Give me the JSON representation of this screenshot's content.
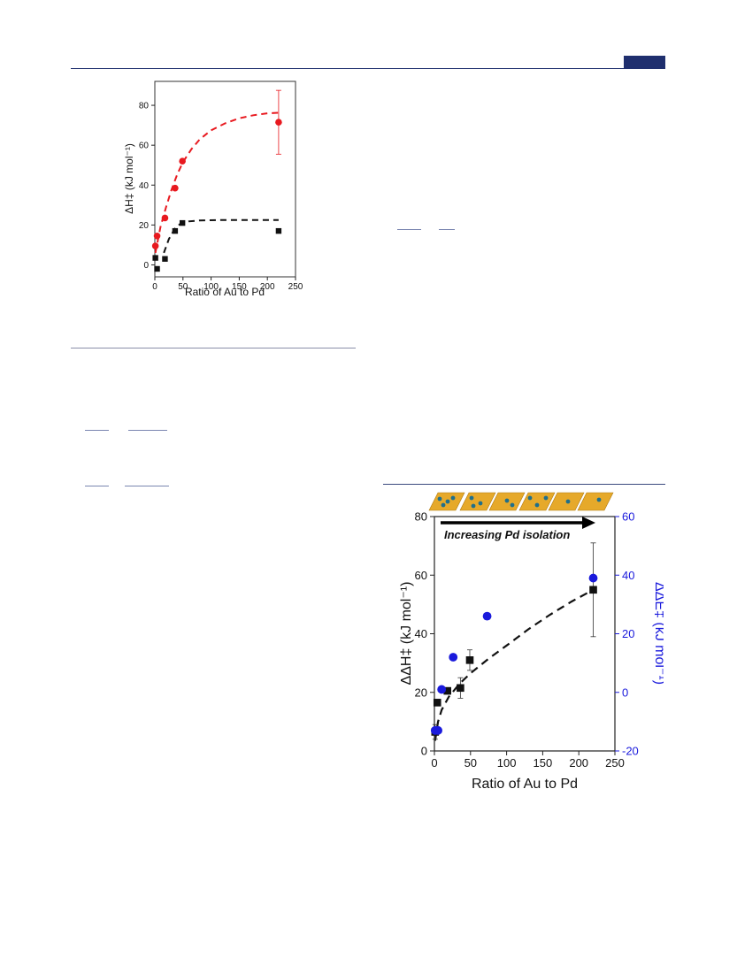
{
  "chart_data": [
    {
      "type": "scatter",
      "xlabel": "Ratio of Au to Pd",
      "ylabel": "ΔH‡ (kJ mol⁻¹)",
      "xlim": [
        0,
        250
      ],
      "ylim": [
        -6,
        92
      ],
      "xticks": [
        "0",
        "50",
        "100",
        "150",
        "200",
        "250"
      ],
      "yticks": [
        "0",
        "20",
        "40",
        "60",
        "80"
      ],
      "series": [
        {
          "color": "#e8191f",
          "marker": "circle",
          "points": [
            {
              "x": 1,
              "y": 9.5
            },
            {
              "x": 4,
              "y": 14.5
            },
            {
              "x": 18,
              "y": 23.5
            },
            {
              "x": 36,
              "y": 38.5
            },
            {
              "x": 49,
              "y": 52
            },
            {
              "x": 220,
              "y": 71.5,
              "err": 16
            }
          ],
          "fit": [
            [
              1,
              6
            ],
            [
              10,
              19
            ],
            [
              20,
              29
            ],
            [
              30,
              38
            ],
            [
              40,
              45.5
            ],
            [
              50,
              51.5
            ],
            [
              65,
              58
            ],
            [
              80,
              63
            ],
            [
              100,
              67.5
            ],
            [
              125,
              71
            ],
            [
              150,
              73.5
            ],
            [
              175,
              75
            ],
            [
              200,
              76
            ],
            [
              220,
              76.3
            ]
          ]
        },
        {
          "color": "#111111",
          "marker": "square",
          "points": [
            {
              "x": 1,
              "y": 3.5
            },
            {
              "x": 4,
              "y": -2
            },
            {
              "x": 18,
              "y": 3
            },
            {
              "x": 36,
              "y": 17
            },
            {
              "x": 49,
              "y": 21
            },
            {
              "x": 220,
              "y": 17
            }
          ],
          "fit": [
            [
              16,
              6
            ],
            [
              25,
              13
            ],
            [
              35,
              18
            ],
            [
              45,
              20.5
            ],
            [
              60,
              21.8
            ],
            [
              80,
              22.3
            ],
            [
              120,
              22.5
            ],
            [
              160,
              22.5
            ],
            [
              220,
              22.5
            ]
          ]
        }
      ]
    },
    {
      "type": "scatter",
      "title": "Increasing Pd isolation",
      "xlabel": "Ratio of Au to Pd",
      "ylabel": "ΔΔH‡ (kJ mol⁻¹)",
      "y2label": "ΔΔE‡ (kJ mol⁻¹)",
      "xlim": [
        0,
        250
      ],
      "ylim": [
        0,
        80
      ],
      "y2lim": [
        -20,
        60
      ],
      "xticks": [
        "0",
        "50",
        "100",
        "150",
        "200",
        "250"
      ],
      "yticks": [
        "0",
        "20",
        "40",
        "60",
        "80"
      ],
      "y2ticks": [
        "-20",
        "0",
        "20",
        "40",
        "60"
      ],
      "series": [
        {
          "color": "#111111",
          "marker": "square",
          "axis": "left",
          "points": [
            {
              "x": 1,
              "y": 6.5,
              "err": 2.5
            },
            {
              "x": 4,
              "y": 16.5
            },
            {
              "x": 18,
              "y": 20.5
            },
            {
              "x": 36,
              "y": 21.5,
              "err": 3.5
            },
            {
              "x": 49,
              "y": 31,
              "err": 3.5
            },
            {
              "x": 220,
              "y": 55,
              "err": 16
            }
          ],
          "fit": [
            [
              1,
              3.5
            ],
            [
              5,
              10
            ],
            [
              10,
              14
            ],
            [
              20,
              18.5
            ],
            [
              35,
              23
            ],
            [
              50,
              26.5
            ],
            [
              75,
              31.5
            ],
            [
              100,
              36
            ],
            [
              130,
              41.5
            ],
            [
              160,
              46.5
            ],
            [
              190,
              51
            ],
            [
              220,
              55
            ]
          ]
        },
        {
          "color": "#1a1adc",
          "marker": "circle",
          "axis": "right",
          "points": [
            {
              "x": 1,
              "y": -13
            },
            {
              "x": 5,
              "y": -13
            },
            {
              "x": 10,
              "y": 1
            },
            {
              "x": 26,
              "y": 12
            },
            {
              "x": 73,
              "y": 26
            },
            {
              "x": 220,
              "y": 39
            }
          ]
        }
      ]
    }
  ]
}
